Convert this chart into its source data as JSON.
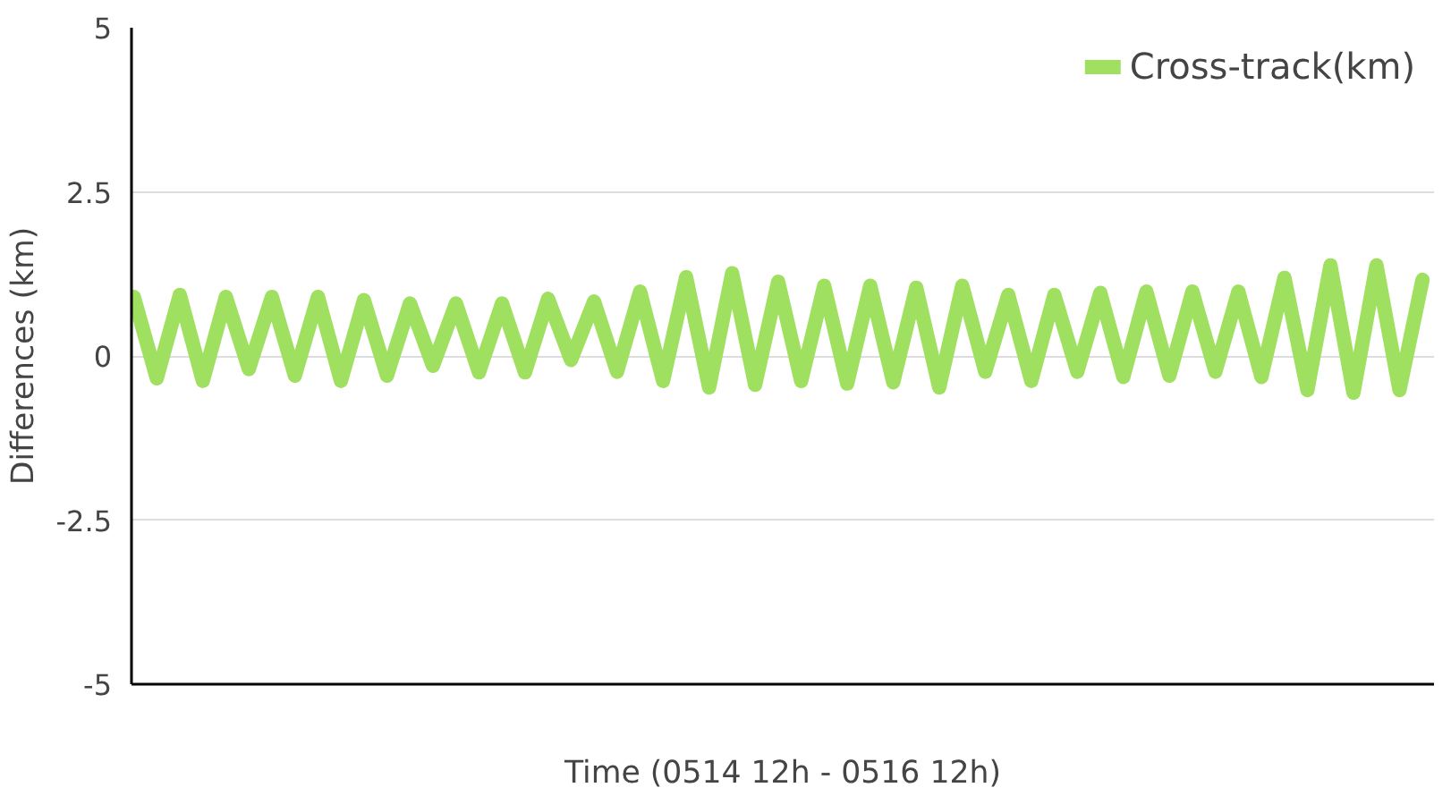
{
  "chart_data": {
    "type": "line",
    "xlabel": "Time (0514 12h - 0516 12h)",
    "ylabel": "Differences (km)",
    "categories": [
      null,
      null,
      null,
      null,
      null,
      null,
      null,
      null,
      null,
      null,
      null,
      null,
      null,
      null,
      null,
      null,
      null,
      null,
      null,
      null,
      null,
      null,
      null,
      null,
      null,
      null,
      null,
      null,
      null,
      null,
      null,
      null,
      null,
      null,
      null,
      null,
      null,
      null,
      null,
      null,
      null,
      null,
      null,
      null,
      null,
      null,
      null,
      null,
      null,
      null,
      null,
      null,
      null,
      null,
      null,
      null,
      null
    ],
    "ylim": [
      -5,
      5
    ],
    "yticks": [
      -5,
      -2.5,
      0,
      2.5,
      5
    ],
    "grid": "y",
    "legend": "top right",
    "tick_labels": "y",
    "marker": "none",
    "line_style": "solid",
    "series": [
      {
        "name": "Cross-track(km)",
        "color": "#a0e060",
        "values": [
          0.9,
          -0.34,
          0.93,
          -0.38,
          0.9,
          -0.2,
          0.9,
          -0.3,
          0.9,
          -0.38,
          0.85,
          -0.3,
          0.8,
          -0.15,
          0.8,
          -0.25,
          0.8,
          -0.25,
          0.87,
          -0.06,
          0.83,
          -0.24,
          0.98,
          -0.38,
          1.2,
          -0.48,
          1.26,
          -0.44,
          1.13,
          -0.38,
          1.07,
          -0.42,
          1.07,
          -0.4,
          1.04,
          -0.48,
          1.07,
          -0.24,
          0.93,
          -0.38,
          0.93,
          -0.24,
          0.96,
          -0.32,
          0.98,
          -0.3,
          0.98,
          -0.24,
          0.98,
          -0.32,
          1.19,
          -0.52,
          1.38,
          -0.56,
          1.38,
          -0.52,
          1.16
        ]
      }
    ]
  }
}
